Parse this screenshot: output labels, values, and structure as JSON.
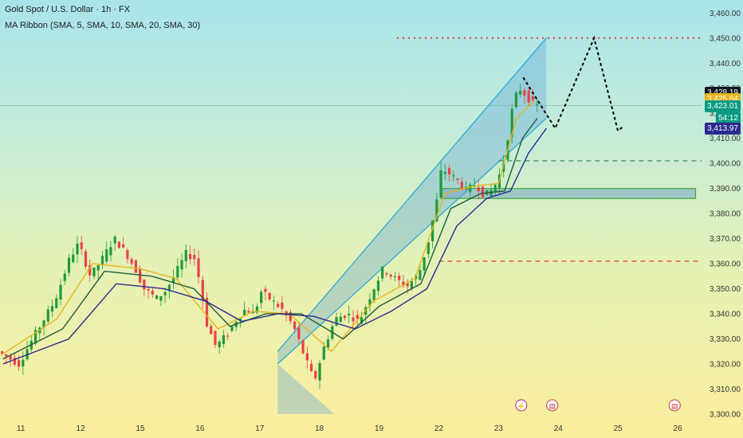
{
  "header": {
    "title": "Gold Spot / U.S. Dollar · 1h · FX",
    "indicator": "MA Ribbon (SMA, 5, SMA, 10, SMA, 20, SMA, 30)"
  },
  "price_tags": [
    {
      "value": "3,428.19",
      "color": "#131722"
    },
    {
      "value": "3,425.64",
      "color": "#e8b41c"
    },
    {
      "value": "3,423.01",
      "color": "#089981"
    },
    {
      "value": "54:12",
      "color": "#089981"
    },
    {
      "value": "3,413.97",
      "color": "#2c2a8f"
    }
  ],
  "chart_data": {
    "type": "candlestick",
    "title": "Gold Spot / U.S. Dollar · 1h · FX",
    "yticks": [
      3300,
      3310,
      3320,
      3330,
      3340,
      3350,
      3360,
      3370,
      3380,
      3390,
      3400,
      3410,
      3420,
      3430,
      3440,
      3450,
      3460
    ],
    "ytick_labels": [
      "3,300.00",
      "3,310.00",
      "3,320.00",
      "3,330.00",
      "3,340.00",
      "3,350.00",
      "3,360.00",
      "3,370.00",
      "3,380.00",
      "3,390.00",
      "3,400.00",
      "3,410.00",
      "3,420.00",
      "3,430.00",
      "3,440.00",
      "3,450.00",
      "3,460.00"
    ],
    "ylim": [
      3300,
      3462
    ],
    "x_labels": [
      "11",
      "12",
      "15",
      "16",
      "17",
      "18",
      "19",
      "22",
      "23",
      "24",
      "25",
      "26"
    ],
    "x_index": [
      0,
      1,
      2,
      3,
      4,
      5,
      6,
      7,
      8,
      9,
      10,
      11
    ],
    "xlim": [
      -0.35,
      11.4
    ],
    "price_path": [
      [
        -0.35,
        3325
      ],
      [
        0.0,
        3320
      ],
      [
        0.3,
        3333
      ],
      [
        0.6,
        3345
      ],
      [
        0.85,
        3362
      ],
      [
        1.0,
        3368
      ],
      [
        1.2,
        3355
      ],
      [
        1.4,
        3362
      ],
      [
        1.6,
        3370
      ],
      [
        1.8,
        3364
      ],
      [
        1.95,
        3358
      ],
      [
        2.1,
        3350
      ],
      [
        2.3,
        3346
      ],
      [
        2.45,
        3349
      ],
      [
        2.6,
        3355
      ],
      [
        2.8,
        3364
      ],
      [
        2.95,
        3362
      ],
      [
        3.05,
        3350
      ],
      [
        3.15,
        3336
      ],
      [
        3.3,
        3327
      ],
      [
        3.5,
        3332
      ],
      [
        3.65,
        3338
      ],
      [
        3.8,
        3342
      ],
      [
        3.95,
        3340
      ],
      [
        4.05,
        3349
      ],
      [
        4.2,
        3346
      ],
      [
        4.4,
        3342
      ],
      [
        4.6,
        3335
      ],
      [
        4.8,
        3322
      ],
      [
        4.95,
        3313
      ],
      [
        5.1,
        3326
      ],
      [
        5.3,
        3338
      ],
      [
        5.5,
        3340
      ],
      [
        5.7,
        3337
      ],
      [
        5.9,
        3348
      ],
      [
        6.1,
        3358
      ],
      [
        6.3,
        3354
      ],
      [
        6.5,
        3351
      ],
      [
        6.7,
        3356
      ],
      [
        6.85,
        3368
      ],
      [
        7.0,
        3385
      ],
      [
        7.08,
        3398
      ],
      [
        7.2,
        3396
      ],
      [
        7.35,
        3393
      ],
      [
        7.5,
        3389
      ],
      [
        7.65,
        3392
      ],
      [
        7.8,
        3387
      ],
      [
        7.95,
        3390
      ],
      [
        8.1,
        3398
      ],
      [
        8.2,
        3412
      ],
      [
        8.28,
        3424
      ],
      [
        8.38,
        3430
      ],
      [
        8.5,
        3427
      ],
      [
        8.6,
        3424
      ],
      [
        8.65,
        3423.01
      ]
    ],
    "ma_series": [
      {
        "color": "#e8b41c",
        "points": [
          [
            -0.3,
            3324
          ],
          [
            0.6,
            3338
          ],
          [
            1.2,
            3360
          ],
          [
            2.0,
            3358
          ],
          [
            2.6,
            3354
          ],
          [
            3.3,
            3334
          ],
          [
            3.9,
            3341
          ],
          [
            4.5,
            3340
          ],
          [
            5.2,
            3325
          ],
          [
            5.9,
            3345
          ],
          [
            6.6,
            3354
          ],
          [
            7.1,
            3388
          ],
          [
            7.6,
            3391
          ],
          [
            8.0,
            3392
          ],
          [
            8.3,
            3418
          ],
          [
            8.6,
            3425
          ]
        ]
      },
      {
        "color": "#1f5c3a",
        "points": [
          [
            -0.3,
            3322
          ],
          [
            0.7,
            3334
          ],
          [
            1.4,
            3357
          ],
          [
            2.2,
            3355
          ],
          [
            2.9,
            3350
          ],
          [
            3.5,
            3335
          ],
          [
            4.1,
            3340
          ],
          [
            4.7,
            3340
          ],
          [
            5.4,
            3330
          ],
          [
            6.0,
            3343
          ],
          [
            6.7,
            3352
          ],
          [
            7.2,
            3382
          ],
          [
            7.7,
            3388
          ],
          [
            8.1,
            3389
          ],
          [
            8.4,
            3410
          ],
          [
            8.65,
            3418
          ]
        ]
      },
      {
        "color": "#2c2a8f",
        "points": [
          [
            -0.3,
            3320
          ],
          [
            0.8,
            3330
          ],
          [
            1.6,
            3352
          ],
          [
            2.4,
            3350
          ],
          [
            3.1,
            3345
          ],
          [
            3.7,
            3337
          ],
          [
            4.3,
            3340
          ],
          [
            4.9,
            3339
          ],
          [
            5.6,
            3334
          ],
          [
            6.2,
            3341
          ],
          [
            6.8,
            3350
          ],
          [
            7.3,
            3375
          ],
          [
            7.8,
            3386
          ],
          [
            8.2,
            3389
          ],
          [
            8.5,
            3404
          ],
          [
            8.8,
            3413.97
          ]
        ]
      }
    ],
    "channel": {
      "lower": [
        [
          4.3,
          3320
        ],
        [
          8.8,
          3418
        ]
      ],
      "upper": [
        [
          4.3,
          3325
        ],
        [
          8.8,
          3450
        ]
      ],
      "bottom": 3300
    },
    "resistance_dotted": 3450,
    "dashed_levels": [
      {
        "value": 3401,
        "color": "#3f8a58",
        "from": 8.0
      },
      {
        "value": 3361,
        "color": "#e04040",
        "from": 7.0
      }
    ],
    "zone": {
      "from": 7.05,
      "to": 11.3,
      "top": 3390,
      "bottom": 3386
    },
    "projection": [
      [
        8.42,
        3434
      ],
      [
        8.95,
        3414
      ],
      [
        9.6,
        3450
      ],
      [
        10.0,
        3413
      ],
      [
        10.1,
        3415
      ]
    ],
    "current_price": 3423.01,
    "grid": false,
    "legend_placement": "top-left"
  }
}
